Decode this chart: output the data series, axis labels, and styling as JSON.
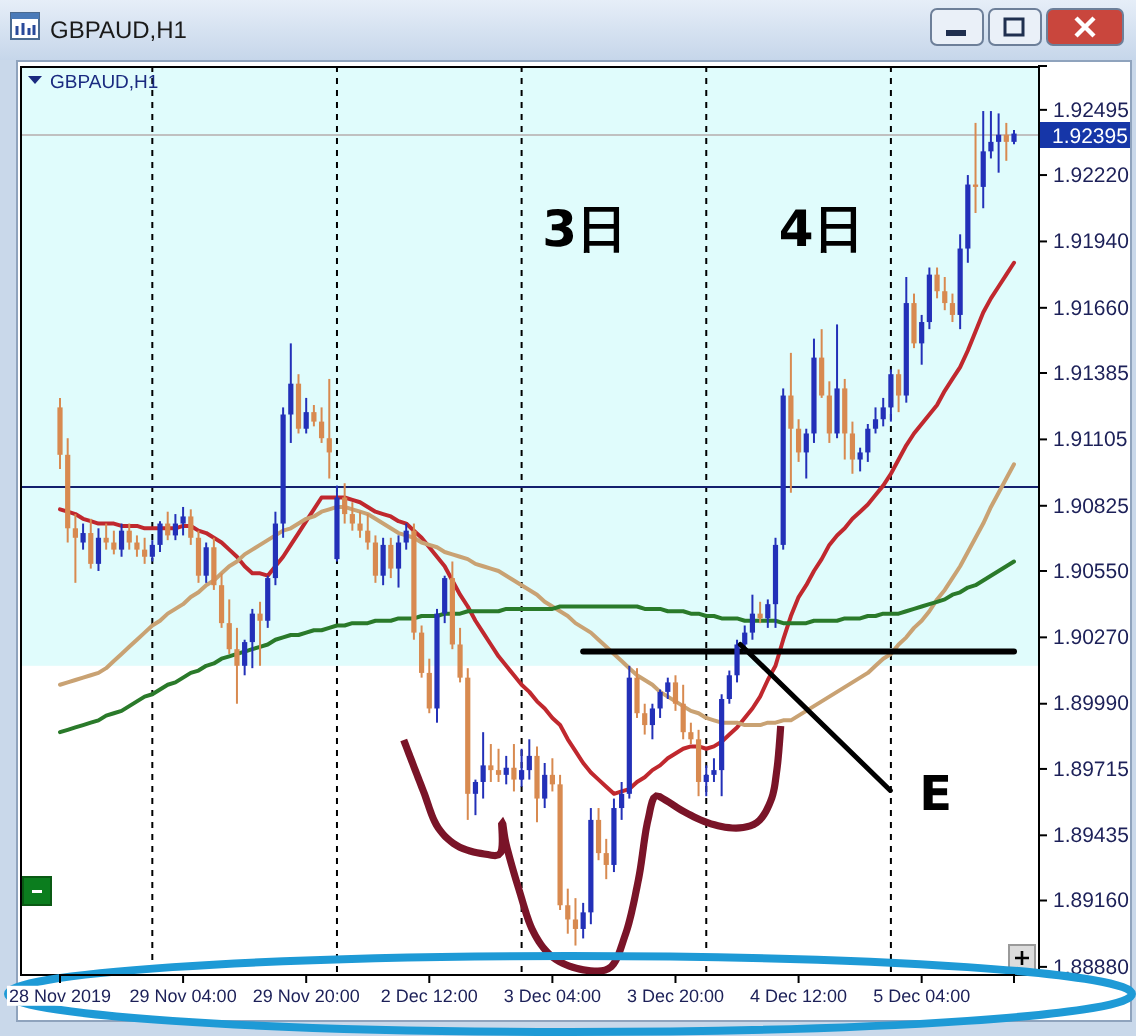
{
  "chart_data": {
    "type": "candlestick",
    "title": "GBPAUD,H1",
    "subtitle": "GBPAUD,H1",
    "categories": [
      "28 Nov 2019",
      null,
      null,
      null,
      null,
      null,
      null,
      null,
      null,
      null,
      null,
      null,
      null,
      null,
      null,
      null,
      "29 Nov 04:00",
      null,
      null,
      null,
      null,
      null,
      null,
      null,
      null,
      null,
      null,
      null,
      null,
      null,
      null,
      null,
      "29 Nov 20:00",
      null,
      null,
      null,
      null,
      null,
      null,
      null,
      null,
      null,
      null,
      null,
      null,
      null,
      null,
      null,
      "2 Dec 12:00",
      null,
      null,
      null,
      null,
      null,
      null,
      null,
      null,
      null,
      null,
      null,
      null,
      null,
      null,
      null,
      "3 Dec 04:00",
      null,
      null,
      null,
      null,
      null,
      null,
      null,
      null,
      null,
      null,
      null,
      null,
      null,
      null,
      null,
      "3 Dec 20:00",
      null,
      null,
      null,
      null,
      null,
      null,
      null,
      null,
      null,
      null,
      null,
      null,
      null,
      null,
      null,
      "4 Dec 12:00",
      null,
      null,
      null,
      null,
      null,
      null,
      null,
      null,
      null,
      null,
      null,
      null,
      null,
      null,
      null,
      "5 Dec 04:00",
      null,
      null,
      null,
      null,
      null,
      null,
      null,
      null,
      null,
      null,
      null,
      null
    ],
    "ylim": [
      1.8885,
      1.9268
    ],
    "yticks": [
      1.92495,
      {
        "value": 1.9222,
        "label": "1.92220"
      },
      {
        "value": 1.9194,
        "label": "1.91940"
      },
      {
        "value": 1.9166,
        "label": "1.91660"
      },
      1.91385,
      1.91105,
      1.90825,
      {
        "value": 1.9055,
        "label": "1.90550"
      },
      {
        "value": 1.9027,
        "label": "1.90270"
      },
      {
        "value": 1.8999,
        "label": "1.89990"
      },
      1.89715,
      1.89435,
      {
        "value": 1.8916,
        "label": "1.89160"
      },
      {
        "value": 1.8888,
        "label": "1.88880"
      }
    ],
    "ohlc": [
      [
        1.9124,
        1.9128,
        1.9098,
        1.9104
      ],
      [
        1.9104,
        1.9111,
        1.9067,
        1.9073
      ],
      [
        1.9073,
        1.9079,
        1.905,
        1.9069
      ],
      [
        1.9067,
        1.9075,
        1.9064,
        1.9071
      ],
      [
        1.9071,
        1.9077,
        1.9056,
        1.9058
      ],
      [
        1.9058,
        1.9073,
        1.9055,
        1.9069
      ],
      [
        1.9069,
        1.9075,
        1.9064,
        1.9067
      ],
      [
        1.9067,
        1.9072,
        1.9062,
        1.9064
      ],
      [
        1.9064,
        1.9075,
        1.9061,
        1.9072
      ],
      [
        1.9072,
        1.9075,
        1.9064,
        1.9067
      ],
      [
        1.9067,
        1.907,
        1.9061,
        1.9064
      ],
      [
        1.9064,
        1.9069,
        1.9058,
        1.9061
      ],
      [
        1.9061,
        1.9068,
        1.9059,
        1.9066
      ],
      [
        1.9066,
        1.9076,
        1.9063,
        1.9075
      ],
      [
        1.9075,
        1.908,
        1.9068,
        1.907
      ],
      [
        1.907,
        1.9079,
        1.9068,
        1.9075
      ],
      [
        1.9075,
        1.9082,
        1.907,
        1.9078
      ],
      [
        1.9078,
        1.9081,
        1.9066,
        1.9069
      ],
      [
        1.9069,
        1.9072,
        1.905,
        1.9053
      ],
      [
        1.9053,
        1.9067,
        1.905,
        1.9065
      ],
      [
        1.9065,
        1.9069,
        1.9047,
        1.9049
      ],
      [
        1.9049,
        1.9054,
        1.9031,
        1.9033
      ],
      [
        1.9033,
        1.9043,
        1.902,
        1.9022
      ],
      [
        1.9022,
        1.9031,
        1.8999,
        1.9015
      ],
      [
        1.9015,
        1.9026,
        1.9011,
        1.9025
      ],
      [
        1.9025,
        1.9039,
        1.9014,
        1.9037
      ],
      [
        1.9037,
        1.9042,
        1.9015,
        1.9034
      ],
      [
        1.9034,
        1.9053,
        1.9031,
        1.9052
      ],
      [
        1.9052,
        1.908,
        1.9049,
        1.9075
      ],
      [
        1.9075,
        1.9124,
        1.9069,
        1.9121
      ],
      [
        1.9121,
        1.9151,
        1.9109,
        1.9134
      ],
      [
        1.9134,
        1.9138,
        1.9113,
        1.9115
      ],
      [
        1.9115,
        1.9128,
        1.9113,
        1.9122
      ],
      [
        1.9122,
        1.9125,
        1.9116,
        1.9118
      ],
      [
        1.9118,
        1.9124,
        1.9109,
        1.9111
      ],
      [
        1.9111,
        1.9136,
        1.9094,
        1.9105
      ],
      [
        1.906,
        1.9091,
        1.9059,
        1.9086
      ],
      [
        1.9086,
        1.9092,
        1.9075,
        1.9079
      ],
      [
        1.9079,
        1.9084,
        1.9072,
        1.9075
      ],
      [
        1.9075,
        1.908,
        1.9069,
        1.9072
      ],
      [
        1.9072,
        1.9079,
        1.9064,
        1.9067
      ],
      [
        1.9067,
        1.907,
        1.905,
        1.9053
      ],
      [
        1.9053,
        1.9069,
        1.9049,
        1.9066
      ],
      [
        1.9066,
        1.9069,
        1.9052,
        1.9056
      ],
      [
        1.9056,
        1.907,
        1.9048,
        1.9067
      ],
      [
        1.9067,
        1.9075,
        1.9064,
        1.9072
      ],
      [
        1.9072,
        1.9075,
        1.9026,
        1.9029
      ],
      [
        1.9029,
        1.9032,
        1.901,
        1.9012
      ],
      [
        1.9012,
        1.9018,
        1.8995,
        1.8997
      ],
      [
        1.8997,
        1.9039,
        1.8991,
        1.9037
      ],
      [
        1.9037,
        1.9053,
        1.9033,
        1.9052
      ],
      [
        1.9052,
        1.9059,
        1.9022,
        1.9024
      ],
      [
        1.9024,
        1.9031,
        1.9008,
        1.901
      ],
      [
        1.901,
        1.9014,
        1.895,
        1.8961
      ],
      [
        1.8961,
        1.8967,
        1.8952,
        1.8966
      ],
      [
        1.8966,
        1.8987,
        1.8959,
        1.8973
      ],
      [
        1.8973,
        1.8982,
        1.8966,
        1.8971
      ],
      [
        1.8971,
        1.898,
        1.8966,
        1.8969
      ],
      [
        1.8969,
        1.8977,
        1.8965,
        1.8972
      ],
      [
        1.8972,
        1.8982,
        1.8962,
        1.8967
      ],
      [
        1.8967,
        1.898,
        1.8964,
        1.8971
      ],
      [
        1.8971,
        1.8984,
        1.8967,
        1.8977
      ],
      [
        1.8977,
        1.8981,
        1.8949,
        1.8959
      ],
      [
        1.8959,
        1.8974,
        1.8955,
        1.8969
      ],
      [
        1.8969,
        1.8976,
        1.8962,
        1.8965
      ],
      [
        1.8965,
        1.8969,
        1.8912,
        1.8914
      ],
      [
        1.8914,
        1.8921,
        1.8902,
        1.8908
      ],
      [
        1.8908,
        1.8917,
        1.8897,
        1.8904
      ],
      [
        1.8904,
        1.8915,
        1.89,
        1.8911
      ],
      [
        1.8911,
        1.8955,
        1.8906,
        1.895
      ],
      [
        1.895,
        1.8955,
        1.8933,
        1.8936
      ],
      [
        1.8936,
        1.8942,
        1.8925,
        1.8931
      ],
      [
        1.8931,
        1.8959,
        1.8928,
        1.8955
      ],
      [
        1.8955,
        1.8966,
        1.895,
        1.8961
      ],
      [
        1.8961,
        1.9015,
        1.8959,
        1.901
      ],
      [
        1.901,
        1.9014,
        1.8993,
        1.8995
      ],
      [
        1.8995,
        1.8999,
        1.8986,
        1.899
      ],
      [
        1.899,
        1.8999,
        1.8984,
        1.8997
      ],
      [
        1.8997,
        1.9005,
        1.8993,
        1.9004
      ],
      [
        1.9004,
        1.901,
        1.9001,
        1.9008
      ],
      [
        1.9008,
        1.9011,
        1.8996,
        1.8999
      ],
      [
        1.8999,
        1.9007,
        1.8984,
        1.8987
      ],
      [
        1.8987,
        1.8991,
        1.8982,
        1.8984
      ],
      [
        1.8984,
        1.8988,
        1.896,
        1.8966
      ],
      [
        1.8966,
        1.8973,
        1.896,
        1.8969
      ],
      [
        1.8969,
        1.8976,
        1.8966,
        1.8971
      ],
      [
        1.8971,
        1.9003,
        1.896,
        1.9001
      ],
      [
        1.9001,
        1.9013,
        1.8999,
        1.9011
      ],
      [
        1.9011,
        1.9026,
        1.9008,
        1.9024
      ],
      [
        1.9024,
        1.9032,
        1.9021,
        1.9029
      ],
      [
        1.9029,
        1.9045,
        1.9026,
        1.9037
      ],
      [
        1.9037,
        1.9042,
        1.9033,
        1.9035
      ],
      [
        1.9035,
        1.9043,
        1.9031,
        1.9041
      ],
      [
        1.9041,
        1.9069,
        1.9031,
        1.9066
      ],
      [
        1.9066,
        1.9132,
        1.9064,
        1.9129
      ],
      [
        1.9129,
        1.9147,
        1.9088,
        1.9115
      ],
      [
        1.9115,
        1.9119,
        1.9101,
        1.9105
      ],
      [
        1.9105,
        1.9115,
        1.9094,
        1.9113
      ],
      [
        1.9113,
        1.9153,
        1.9109,
        1.9145
      ],
      [
        1.9145,
        1.9157,
        1.9128,
        1.9129
      ],
      [
        1.9129,
        1.9135,
        1.9109,
        1.9113
      ],
      [
        1.9113,
        1.9159,
        1.9111,
        1.9132
      ],
      [
        1.9132,
        1.9136,
        1.9102,
        1.9113
      ],
      [
        1.9113,
        1.9118,
        1.9096,
        1.9102
      ],
      [
        1.9102,
        1.9107,
        1.9097,
        1.9105
      ],
      [
        1.9105,
        1.9117,
        1.9101,
        1.9115
      ],
      [
        1.9115,
        1.9124,
        1.9113,
        1.9119
      ],
      [
        1.9119,
        1.9128,
        1.9116,
        1.9124
      ],
      [
        1.9124,
        1.914,
        1.9118,
        1.9138
      ],
      [
        1.9138,
        1.914,
        1.9122,
        1.9129
      ],
      [
        1.9129,
        1.9179,
        1.9126,
        1.9168
      ],
      [
        1.9168,
        1.9172,
        1.9149,
        1.9151
      ],
      [
        1.9151,
        1.9163,
        1.9142,
        1.916
      ],
      [
        1.916,
        1.9183,
        1.9157,
        1.918
      ],
      [
        1.918,
        1.9183,
        1.917,
        1.9173
      ],
      [
        1.9173,
        1.9179,
        1.9165,
        1.9168
      ],
      [
        1.9168,
        1.9172,
        1.916,
        1.9163
      ],
      [
        1.9163,
        1.9197,
        1.9157,
        1.9191
      ],
      [
        1.9191,
        1.9222,
        1.9185,
        1.9218
      ],
      [
        1.9218,
        1.9244,
        1.9206,
        1.9217
      ],
      [
        1.9217,
        1.9249,
        1.9208,
        1.9232
      ],
      [
        1.9232,
        1.9249,
        1.9229,
        1.9236
      ],
      [
        1.9236,
        1.9248,
        1.9223,
        1.9239
      ],
      [
        1.9239,
        1.9244,
        1.9228,
        1.9236
      ],
      [
        1.9236,
        1.9241,
        1.9235,
        1.92395
      ]
    ],
    "colors": [
      "#d88a50",
      "#d88a50",
      "#d88a50",
      "#2330b8",
      "#d88a50",
      "#2330b8",
      "#d88a50",
      "#d88a50",
      "#2330b8",
      "#d88a50",
      "#d88a50",
      "#d88a50",
      "#2330b8",
      "#2330b8",
      "#d88a50",
      "#2330b8",
      "#2330b8",
      "#d88a50",
      "#d88a50",
      "#2330b8",
      "#d88a50",
      "#d88a50",
      "#d88a50",
      "#d88a50",
      "#2330b8",
      "#2330b8",
      "#d88a50",
      "#2330b8",
      "#2330b8",
      "#2330b8",
      "#2330b8",
      "#d88a50",
      "#2330b8",
      "#d88a50",
      "#d88a50",
      "#d88a50",
      "#2330b8",
      "#d88a50",
      "#d88a50",
      "#d88a50",
      "#d88a50",
      "#d88a50",
      "#2330b8",
      "#d88a50",
      "#2330b8",
      "#2330b8",
      "#d88a50",
      "#d88a50",
      "#d88a50",
      "#2330b8",
      "#2330b8",
      "#d88a50",
      "#d88a50",
      "#d88a50",
      "#2330b8",
      "#2330b8",
      "#d88a50",
      "#d88a50",
      "#2330b8",
      "#d88a50",
      "#2330b8",
      "#2330b8",
      "#d88a50",
      "#2330b8",
      "#d88a50",
      "#d88a50",
      "#d88a50",
      "#d88a50",
      "#2330b8",
      "#2330b8",
      "#d88a50",
      "#d88a50",
      "#2330b8",
      "#2330b8",
      "#2330b8",
      "#d88a50",
      "#d88a50",
      "#2330b8",
      "#2330b8",
      "#2330b8",
      "#d88a50",
      "#d88a50",
      "#d88a50",
      "#d88a50",
      "#2330b8",
      "#2330b8",
      "#2330b8",
      "#2330b8",
      "#2330b8",
      "#2330b8",
      "#2330b8",
      "#d88a50",
      "#2330b8",
      "#2330b8",
      "#2330b8",
      "#d88a50",
      "#d88a50",
      "#2330b8",
      "#2330b8",
      "#d88a50",
      "#d88a50",
      "#2330b8",
      "#d88a50",
      "#d88a50",
      "#2330b8",
      "#2330b8",
      "#2330b8",
      "#2330b8",
      "#2330b8",
      "#d88a50",
      "#2330b8",
      "#d88a50",
      "#2330b8",
      "#2330b8",
      "#d88a50",
      "#d88a50",
      "#d88a50",
      "#2330b8",
      "#2330b8",
      "#d88a50",
      "#2330b8",
      "#2330b8",
      "#2330b8",
      "#d88a50",
      "#2330b8"
    ],
    "series": [
      {
        "type": "line",
        "color": "#c0282e",
        "values": [
          1.9081,
          1.908,
          1.9079,
          1.9077,
          1.9076,
          1.9075,
          1.9075,
          1.9075,
          1.9074,
          1.9074,
          1.9074,
          1.9073,
          1.9073,
          1.9073,
          1.9073,
          1.9073,
          1.9074,
          1.9074,
          1.9072,
          1.9071,
          1.9069,
          1.9067,
          1.9064,
          1.9061,
          1.9057,
          1.9054,
          1.9054,
          1.9053,
          1.9057,
          1.9061,
          1.9066,
          1.9071,
          1.9076,
          1.9081,
          1.9086,
          1.9086,
          1.9086,
          1.9086,
          1.9085,
          1.9084,
          1.9082,
          1.908,
          1.9079,
          1.9078,
          1.9076,
          1.9075,
          1.9072,
          1.9069,
          1.9065,
          1.9061,
          1.9057,
          1.9051,
          1.9045,
          1.904,
          1.9034,
          1.9029,
          1.9024,
          1.9019,
          1.9015,
          1.9011,
          1.9007,
          1.9004,
          1.9,
          1.8997,
          1.8993,
          1.899,
          1.8984,
          1.8979,
          1.8974,
          1.897,
          1.8967,
          1.8964,
          1.8961,
          1.8962,
          1.8963,
          1.8966,
          1.8968,
          1.8971,
          1.8973,
          1.8976,
          1.8978,
          1.898,
          1.8981,
          1.8981,
          1.898,
          1.8981,
          1.8983,
          1.8986,
          1.8989,
          1.8993,
          1.8997,
          1.9002,
          1.9009,
          1.9015,
          1.9026,
          1.9036,
          1.9044,
          1.9049,
          1.9055,
          1.906,
          1.9066,
          1.907,
          1.9073,
          1.9077,
          1.908,
          1.9083,
          1.9087,
          1.9091,
          1.9096,
          1.9102,
          1.9108,
          1.9113,
          1.9117,
          1.9121,
          1.9125,
          1.9131,
          1.9136,
          1.9141,
          1.9148,
          1.9156,
          1.9164,
          1.917,
          1.9175,
          1.918,
          1.9185
        ]
      },
      {
        "type": "line",
        "color": "#c9a273",
        "values": [
          1.9007,
          1.9008,
          1.9009,
          1.901,
          1.9011,
          1.9012,
          1.9014,
          1.9017,
          1.902,
          1.9023,
          1.9026,
          1.9029,
          1.9032,
          1.9034,
          1.9037,
          1.9039,
          1.9041,
          1.9044,
          1.9046,
          1.9049,
          1.9051,
          1.9054,
          1.9057,
          1.9059,
          1.9062,
          1.9064,
          1.9066,
          1.9068,
          1.907,
          1.9072,
          1.9073,
          1.9075,
          1.9077,
          1.9078,
          1.908,
          1.9081,
          1.9082,
          1.9082,
          1.9081,
          1.908,
          1.9079,
          1.9077,
          1.9075,
          1.9073,
          1.9071,
          1.907,
          1.9069,
          1.9067,
          1.9066,
          1.9065,
          1.9063,
          1.9062,
          1.9061,
          1.906,
          1.9058,
          1.9057,
          1.9056,
          1.9055,
          1.9053,
          1.9051,
          1.9049,
          1.9047,
          1.9045,
          1.9042,
          1.904,
          1.9038,
          1.9036,
          1.9033,
          1.9031,
          1.9029,
          1.9026,
          1.9023,
          1.902,
          1.9017,
          1.9014,
          1.9011,
          1.9009,
          1.9007,
          1.9004,
          1.9002,
          1.9,
          1.8998,
          1.8996,
          1.8995,
          1.8993,
          1.8992,
          1.8991,
          1.8991,
          1.8991,
          1.899,
          1.899,
          1.899,
          1.8991,
          1.8991,
          1.8992,
          1.8992,
          1.8994,
          1.8996,
          1.8998,
          1.9,
          1.9002,
          1.9004,
          1.9006,
          1.9008,
          1.901,
          1.9012,
          1.9015,
          1.9018,
          1.902,
          1.9024,
          1.9027,
          1.9031,
          1.9034,
          1.9038,
          1.9043,
          1.9047,
          1.9052,
          1.9057,
          1.9063,
          1.9069,
          1.9075,
          1.9082,
          1.9088,
          1.9094,
          1.91
        ]
      },
      {
        "type": "line",
        "color": "#2a7a2a",
        "values": [
          1.8987,
          1.8988,
          1.8989,
          1.899,
          1.8991,
          1.8992,
          1.8994,
          1.8995,
          1.8996,
          1.8998,
          1.9,
          1.9002,
          1.9003,
          1.9005,
          1.9007,
          1.9008,
          1.901,
          1.9012,
          1.9013,
          1.9015,
          1.9016,
          1.9018,
          1.9019,
          1.902,
          1.9021,
          1.9022,
          1.9023,
          1.9024,
          1.9026,
          1.9027,
          1.9028,
          1.9028,
          1.9029,
          1.903,
          1.903,
          1.9031,
          1.9032,
          1.9032,
          1.9033,
          1.9033,
          1.9033,
          1.9034,
          1.9034,
          1.9034,
          1.9035,
          1.9035,
          1.9035,
          1.9036,
          1.9036,
          1.9036,
          1.9037,
          1.9037,
          1.9037,
          1.9038,
          1.9038,
          1.9038,
          1.9038,
          1.9038,
          1.9039,
          1.9039,
          1.9039,
          1.9039,
          1.9039,
          1.9039,
          1.9039,
          1.904,
          1.904,
          1.904,
          1.904,
          1.904,
          1.904,
          1.904,
          1.904,
          1.904,
          1.904,
          1.904,
          1.9039,
          1.9039,
          1.9039,
          1.9038,
          1.9038,
          1.9038,
          1.9037,
          1.9037,
          1.9036,
          1.9036,
          1.9035,
          1.9035,
          1.9035,
          1.9034,
          1.9034,
          1.9034,
          1.9034,
          1.9034,
          1.9033,
          1.9033,
          1.9033,
          1.9033,
          1.9034,
          1.9034,
          1.9034,
          1.9034,
          1.9035,
          1.9035,
          1.9035,
          1.9036,
          1.9036,
          1.9037,
          1.9037,
          1.9037,
          1.9038,
          1.9039,
          1.904,
          1.9041,
          1.9042,
          1.9043,
          1.9045,
          1.9046,
          1.9048,
          1.9049,
          1.9051,
          1.9053,
          1.9055,
          1.9057,
          1.9059
        ]
      },
      {
        "type": "line",
        "color": "#000000",
        "values": [
          null,
          null,
          null,
          null,
          null,
          null,
          null,
          null,
          null,
          null,
          null,
          null,
          null,
          null,
          null,
          null,
          null,
          null,
          null,
          null,
          null,
          null,
          null,
          null,
          null,
          null,
          null,
          null,
          null,
          null,
          null,
          null,
          null,
          null,
          null,
          null,
          null,
          null,
          null,
          null,
          null,
          null,
          null,
          null,
          null,
          null,
          null,
          null,
          null,
          null,
          null,
          null,
          null,
          null,
          null,
          null,
          null,
          null,
          null,
          null,
          null,
          null,
          null,
          null,
          null,
          null,
          null,
          null,
          1.9021,
          1.9021,
          1.9021,
          1.9021,
          1.9021,
          1.9021,
          1.9021,
          1.9021,
          1.9021,
          1.9021,
          1.9021,
          1.9021,
          1.9021,
          1.9021,
          1.9021,
          1.9021,
          1.9021,
          1.9021,
          1.9021,
          1.9021,
          1.9021,
          1.9021,
          1.9021,
          1.9021,
          1.9021,
          1.9021,
          1.9021,
          1.9021,
          1.9021,
          1.9021,
          1.9021,
          1.9021,
          1.9021,
          1.9021,
          1.9021,
          1.9021,
          1.9021,
          1.9021,
          1.9021,
          1.9021,
          1.9021,
          1.9021,
          1.9021,
          1.9021,
          1.9021,
          1.9021,
          1.9021,
          1.9021,
          1.9021,
          1.9021,
          1.9021,
          1.9021,
          1.9021,
          1.9021,
          1.9021,
          1.9021,
          1.9021
        ]
      }
    ],
    "ref_lines": [
      {
        "axis": "y",
        "value": 1.9091,
        "color": "#14206e"
      },
      {
        "axis": "y",
        "value": 1.92395,
        "label": "1.92395",
        "color": "#c0c0c0"
      }
    ],
    "bands": [
      {
        "axis": "y",
        "from": 1.9015,
        "to": 1.9268,
        "color": "#e0fcfc"
      }
    ],
    "annotations": [
      "3日",
      "4日",
      {
        "text": "E",
        "y": 1.9024
      }
    ]
  }
}
